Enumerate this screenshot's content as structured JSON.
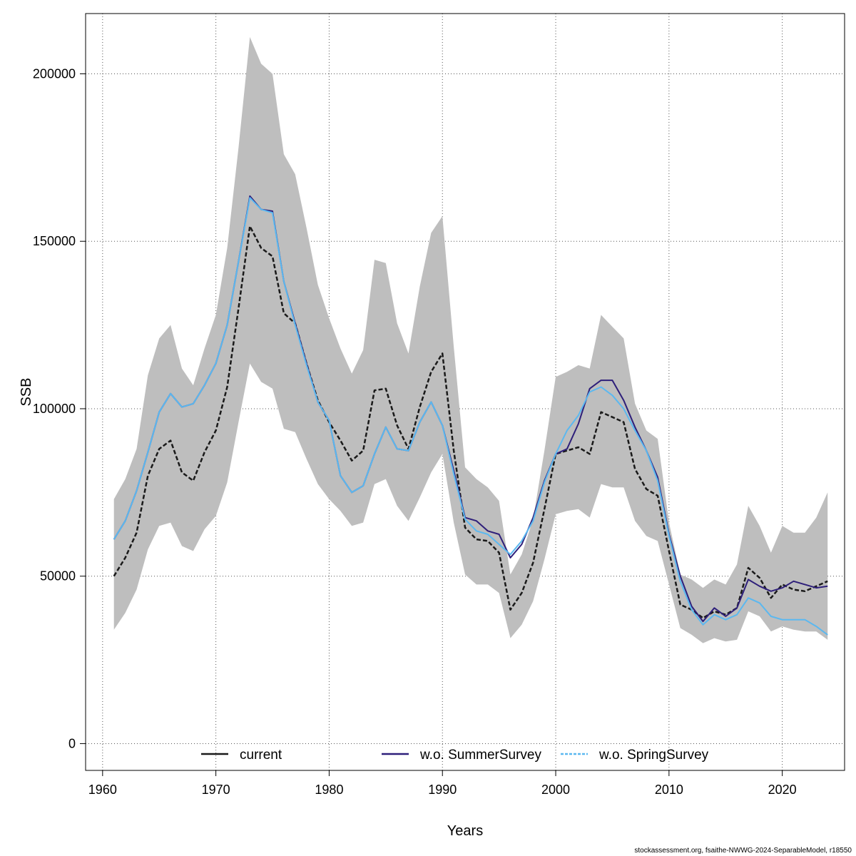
{
  "chart_data": {
    "type": "line",
    "xlabel": "Years",
    "ylabel": "SSB",
    "xlim": [
      1958.5,
      2025.5
    ],
    "ylim": [
      -8000,
      218000
    ],
    "xticks": [
      1960,
      1970,
      1980,
      1990,
      2000,
      2010,
      2020
    ],
    "yticks": [
      0,
      50000,
      100000,
      150000,
      200000
    ],
    "grid": true,
    "legend_position": "bottom",
    "x": [
      1961,
      1962,
      1963,
      1964,
      1965,
      1966,
      1967,
      1968,
      1969,
      1970,
      1971,
      1972,
      1973,
      1974,
      1975,
      1976,
      1977,
      1978,
      1979,
      1980,
      1981,
      1982,
      1983,
      1984,
      1985,
      1986,
      1987,
      1988,
      1989,
      1990,
      1991,
      1992,
      1993,
      1994,
      1995,
      1996,
      1997,
      1998,
      1999,
      2000,
      2001,
      2002,
      2003,
      2004,
      2005,
      2006,
      2007,
      2008,
      2009,
      2010,
      2011,
      2012,
      2013,
      2014,
      2015,
      2016,
      2017,
      2018,
      2019,
      2020,
      2021,
      2022,
      2023,
      2024
    ],
    "band_color": "#bebebe",
    "band_upper": [
      73000,
      79000,
      88000,
      110000,
      121000,
      125000,
      112000,
      107000,
      118000,
      128000,
      148000,
      178000,
      211000,
      203000,
      200000,
      176000,
      170000,
      154000,
      137000,
      127000,
      118000,
      110500,
      117500,
      144500,
      143500,
      125500,
      116500,
      136500,
      152500,
      157500,
      118500,
      82500,
      79000,
      76500,
      72500,
      50500,
      56500,
      67000,
      87500,
      109500,
      111000,
      113000,
      112000,
      128000,
      124500,
      121000,
      101500,
      93500,
      91000,
      66000,
      50500,
      49000,
      46500,
      49000,
      47500,
      53500,
      71000,
      65000,
      57000,
      65000,
      63000,
      63000,
      67500,
      75000
    ],
    "band_lower": [
      34000,
      39000,
      46000,
      58000,
      65000,
      66000,
      59000,
      57500,
      64000,
      68000,
      78000,
      96000,
      113500,
      108000,
      106000,
      94000,
      93000,
      85000,
      77500,
      73000,
      69500,
      65000,
      66000,
      77500,
      79000,
      71000,
      66500,
      73500,
      81000,
      86500,
      66000,
      50500,
      47500,
      47500,
      45000,
      31500,
      35500,
      42500,
      55000,
      68500,
      69500,
      70000,
      67500,
      77500,
      76500,
      76500,
      66500,
      62000,
      60500,
      47500,
      34500,
      32500,
      30000,
      31500,
      30500,
      31000,
      39500,
      38000,
      33500,
      35000,
      34000,
      33500,
      33500,
      31000
    ],
    "series": [
      {
        "name": "current",
        "color": "#1a1a1a",
        "dash": "6,3",
        "values": [
          50000,
          55500,
          63000,
          80000,
          88000,
          90500,
          81000,
          78500,
          87000,
          93500,
          106500,
          130000,
          154500,
          148000,
          145500,
          128500,
          125500,
          113500,
          102500,
          96000,
          90500,
          84500,
          87500,
          105500,
          106000,
          95000,
          88000,
          100500,
          111000,
          116500,
          87500,
          64500,
          61000,
          60500,
          57000,
          40000,
          45000,
          54000,
          70000,
          86500,
          87500,
          88500,
          86500,
          99000,
          97500,
          96000,
          82000,
          76000,
          74000,
          57500,
          41500,
          40000,
          37500,
          39500,
          38500,
          40500,
          52500,
          49500,
          43500,
          47500,
          46000,
          45500,
          47000,
          48500
        ]
      },
      {
        "name": "w.o. SummerSurvey",
        "color": "#2e1f7a",
        "dash": "",
        "values": [
          61000,
          66500,
          75500,
          87000,
          99000,
          104500,
          100500,
          101500,
          107000,
          113500,
          125000,
          144000,
          163500,
          159500,
          159000,
          138000,
          125500,
          113500,
          102000,
          96500,
          80000,
          75000,
          77000,
          86500,
          94500,
          88000,
          87500,
          96000,
          102000,
          95000,
          81500,
          67500,
          66500,
          63500,
          62500,
          55500,
          59500,
          67500,
          78500,
          86500,
          88000,
          95500,
          106000,
          108500,
          108500,
          102500,
          94500,
          87500,
          79500,
          62500,
          50000,
          41000,
          36500,
          40500,
          38000,
          40500,
          49000,
          47000,
          45500,
          46500,
          48500,
          47500,
          46500,
          47000
        ]
      },
      {
        "name": "w.o. SpringSurvey",
        "color": "#5bb8f0",
        "dash": "",
        "values": [
          61000,
          66500,
          75500,
          87000,
          99000,
          104500,
          100500,
          101500,
          107000,
          113500,
          125000,
          144000,
          163000,
          159500,
          158500,
          138000,
          125000,
          113000,
          102000,
          96500,
          80000,
          75000,
          77000,
          86500,
          94500,
          88000,
          87500,
          96000,
          102000,
          95000,
          80500,
          67000,
          63500,
          62500,
          59500,
          56500,
          60500,
          66500,
          78000,
          86500,
          93500,
          98000,
          105000,
          106500,
          104000,
          100000,
          93500,
          87500,
          78500,
          62000,
          48500,
          40000,
          35500,
          38500,
          37000,
          38500,
          43500,
          42000,
          38000,
          37000,
          37000,
          37000,
          35000,
          32500
        ]
      }
    ]
  },
  "footer": "stockassessment.org, fsaithe-NWWG-2024-SeparableModel, r18550"
}
